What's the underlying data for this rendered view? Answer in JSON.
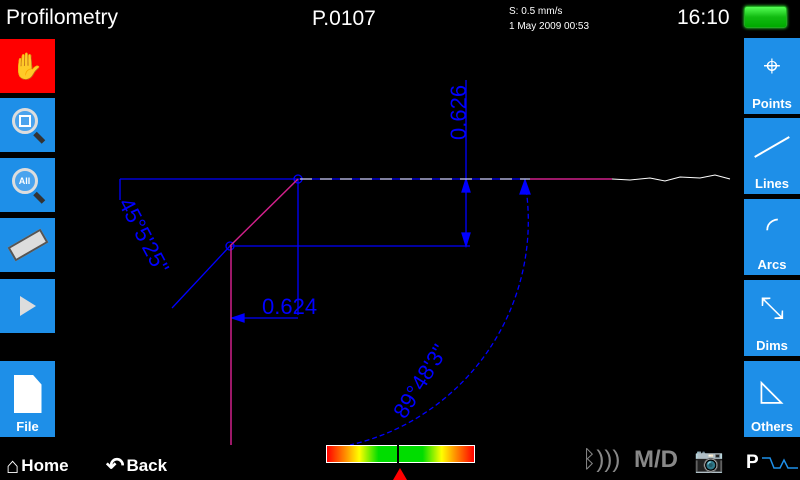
{
  "header": {
    "title": "Profilometry",
    "program": "P.0107",
    "speed": "S: 0.5 mm/s",
    "datetime": "1 May 2009  00:53",
    "clock": "16:10",
    "battery_level": 1.0
  },
  "left_toolbar": [
    {
      "icon": "hand-icon"
    },
    {
      "icon": "zoom-window-icon"
    },
    {
      "icon": "zoom-all-icon",
      "text": "All"
    },
    {
      "icon": "eraser-icon"
    },
    {
      "icon": "play-icon"
    }
  ],
  "file_button": {
    "label": "File",
    "icon": "file-icon"
  },
  "right_toolbar": [
    {
      "label": "Points",
      "icon": "crosshair-icon"
    },
    {
      "label": "Lines",
      "icon": "line-icon"
    },
    {
      "label": "Arcs",
      "icon": "arc-icon"
    },
    {
      "label": "Dims",
      "icon": "dimension-icon"
    },
    {
      "label": "Others",
      "icon": "protractor-icon"
    }
  ],
  "canvas": {
    "dim_vertical": "0.626",
    "dim_horizontal": "0.624",
    "angle_left": "45°5'25\"",
    "angle_arc": "89°48'3\""
  },
  "footer": {
    "home_label": "Home",
    "back_label": "Back",
    "meter_value": 0.5,
    "md_label": "M/D",
    "p_label": "P"
  },
  "colors": {
    "accent": "#1e8fe8",
    "dimension": "#0000ff",
    "selection": "#d0208a",
    "active_tool": "#ff0000"
  }
}
